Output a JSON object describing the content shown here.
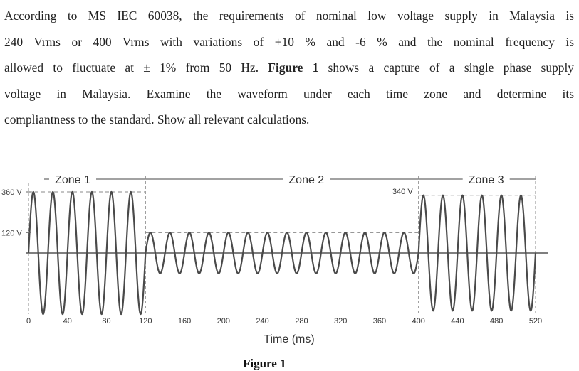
{
  "question": {
    "line1": "According to MS IEC 60038, the requirements of nominal low voltage supply in Malaysia is",
    "line2": "240 Vrms or 400 Vrms with variations of +10 % and -6 % and the nominal frequency is",
    "line3_pre": "allowed to fluctuate at ± 1% from 50 Hz. ",
    "line3_bold": "Figure 1",
    "line3_post": " shows a capture of a single phase supply",
    "line4": "voltage in Malaysia. Examine the waveform under each time zone and determine its",
    "line5": "compliantness to the standard. Show all relevant calculations."
  },
  "figure": {
    "caption": "Figure 1"
  },
  "chart_data": {
    "type": "line",
    "xlabel": "Time (ms)",
    "xlim": [
      0,
      520
    ],
    "x_ticks": [
      0,
      40,
      80,
      120,
      160,
      200,
      240,
      280,
      320,
      360,
      400,
      440,
      480,
      520
    ],
    "y_ticks": [
      {
        "value": 360,
        "label": "360 V"
      },
      {
        "value": 120,
        "label": "120 V"
      }
    ],
    "zones": [
      {
        "label": "Zone 1",
        "start_ms": 0,
        "end_ms": 120,
        "peak_v": 360
      },
      {
        "label": "Zone 2",
        "start_ms": 120,
        "end_ms": 400,
        "peak_v": 120
      },
      {
        "label": "Zone 3",
        "start_ms": 400,
        "end_ms": 520,
        "peak_v": 340
      }
    ],
    "annotations": [
      {
        "text": "340 V",
        "at_ms": 400,
        "value_v": 340
      }
    ],
    "cycles": 26,
    "grid": false,
    "legend": "none",
    "colors": {
      "wave": "#4a4a4a",
      "axis": "#666666",
      "dash": "#8a8a8a"
    }
  }
}
